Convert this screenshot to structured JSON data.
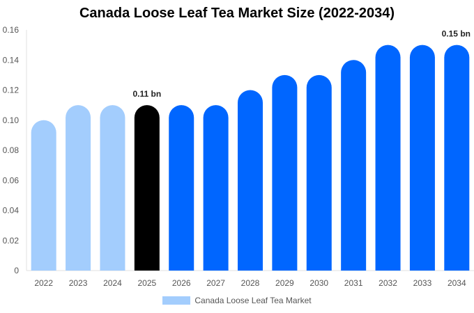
{
  "chart_data": {
    "type": "bar",
    "title": "Canada Loose Leaf Tea Market Size (2022-2034)",
    "categories": [
      "2022",
      "2023",
      "2024",
      "2025",
      "2026",
      "2027",
      "2028",
      "2029",
      "2030",
      "2031",
      "2032",
      "2033",
      "2034"
    ],
    "series": [
      {
        "name": "Canada Loose Leaf Tea Market",
        "values": [
          0.1,
          0.11,
          0.11,
          0.11,
          0.11,
          0.11,
          0.12,
          0.13,
          0.13,
          0.14,
          0.15,
          0.15,
          0.15
        ]
      }
    ],
    "bar_colors": [
      "#a3cdfd",
      "#a3cdfd",
      "#a3cdfd",
      "#000000",
      "#0066ff",
      "#0066ff",
      "#0066ff",
      "#0066ff",
      "#0066ff",
      "#0066ff",
      "#0066ff",
      "#0066ff",
      "#0066ff"
    ],
    "data_labels": [
      {
        "category": "2025",
        "text": "0.11 bn"
      },
      {
        "category": "2034",
        "text": "0.15 bn"
      }
    ],
    "yticks": [
      "0",
      "0.02",
      "0.04",
      "0.06",
      "0.08",
      "0.10",
      "0.12",
      "0.14",
      "0.16"
    ],
    "ylim": [
      0,
      0.16
    ],
    "xlabel": "",
    "ylabel": "",
    "grid": false,
    "legend_position": "bottom",
    "legend_color": "#a3cdfd"
  }
}
